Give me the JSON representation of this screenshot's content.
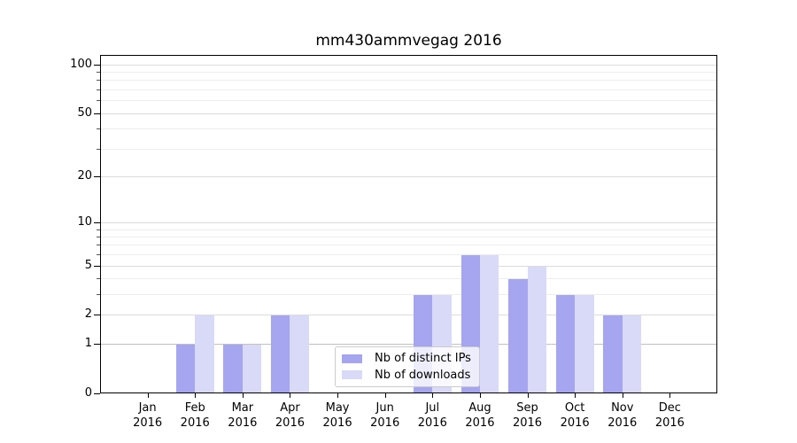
{
  "chart_data": {
    "type": "bar",
    "title": "mm430ammvegag 2016",
    "x": [
      {
        "month": "Jan",
        "year": "2016"
      },
      {
        "month": "Feb",
        "year": "2016"
      },
      {
        "month": "Mar",
        "year": "2016"
      },
      {
        "month": "Apr",
        "year": "2016"
      },
      {
        "month": "May",
        "year": "2016"
      },
      {
        "month": "Jun",
        "year": "2016"
      },
      {
        "month": "Jul",
        "year": "2016"
      },
      {
        "month": "Aug",
        "year": "2016"
      },
      {
        "month": "Sep",
        "year": "2016"
      },
      {
        "month": "Oct",
        "year": "2016"
      },
      {
        "month": "Nov",
        "year": "2016"
      },
      {
        "month": "Dec",
        "year": "2016"
      }
    ],
    "series": [
      {
        "name": "Nb of distinct IPs",
        "color": "#a5a5f0",
        "values": [
          0,
          1,
          1,
          2,
          0,
          0,
          3,
          6,
          4,
          3,
          2,
          0
        ]
      },
      {
        "name": "Nb of downloads",
        "color": "#d9d9f8",
        "values": [
          0,
          2,
          1,
          2,
          0,
          0,
          3,
          6,
          5,
          3,
          2,
          0
        ]
      }
    ],
    "yticks": [
      100,
      50,
      20,
      10,
      5,
      2,
      1,
      0
    ],
    "ylim": [
      0,
      113
    ],
    "yscale": "log10(1+v)",
    "grid": true,
    "legend_position": "lower-center",
    "xlabel": "",
    "ylabel": ""
  }
}
